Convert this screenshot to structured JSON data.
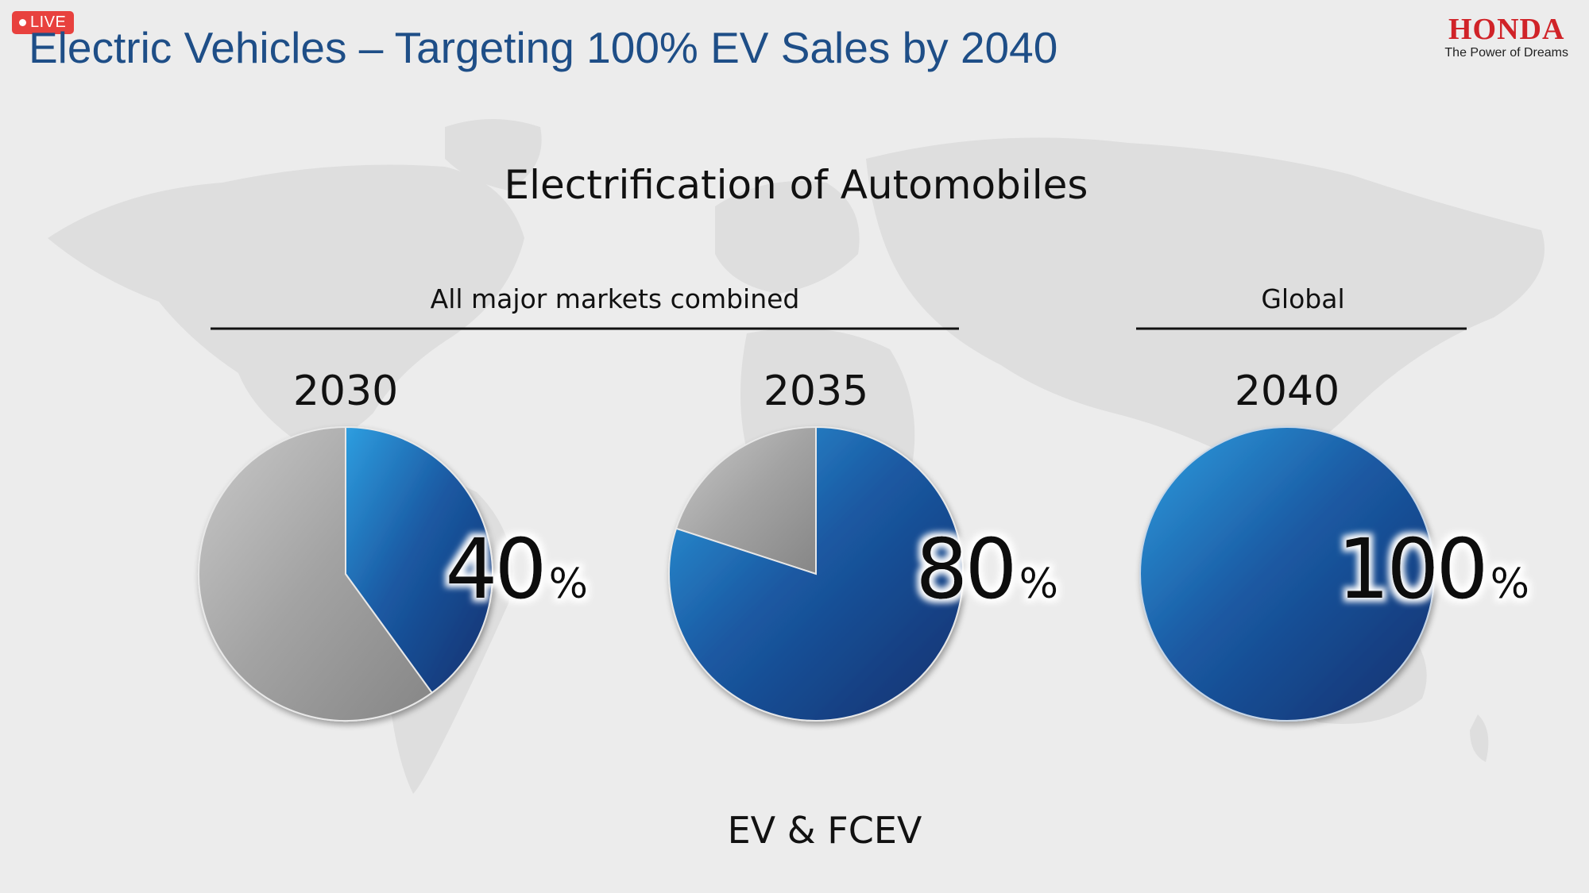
{
  "header": {
    "live_badge": "LIVE",
    "title": "Electric Vehicles – Targeting 100% EV Sales by 2040",
    "brand": "HONDA",
    "brand_tagline": "The Power of Dreams"
  },
  "colors": {
    "ev_share": "#1f4f9a",
    "other_share": "#9a9a9a",
    "title_blue": "#1e4e87",
    "brand_red": "#d02328",
    "live_red": "#e8413e"
  },
  "chart_data": {
    "type": "pie",
    "title": "Electrification of Automobiles",
    "groups": [
      {
        "label": "All major markets combined",
        "years": [
          "2030",
          "2035"
        ]
      },
      {
        "label": "Global",
        "years": [
          "2040"
        ]
      }
    ],
    "pies": [
      {
        "year": "2030",
        "value": 40,
        "value_text": "40",
        "unit": "%"
      },
      {
        "year": "2035",
        "value": 80,
        "value_text": "80",
        "unit": "%"
      },
      {
        "year": "2040",
        "value": 100,
        "value_text": "100",
        "unit": "%"
      }
    ],
    "footnote": "EV & FCEV"
  }
}
